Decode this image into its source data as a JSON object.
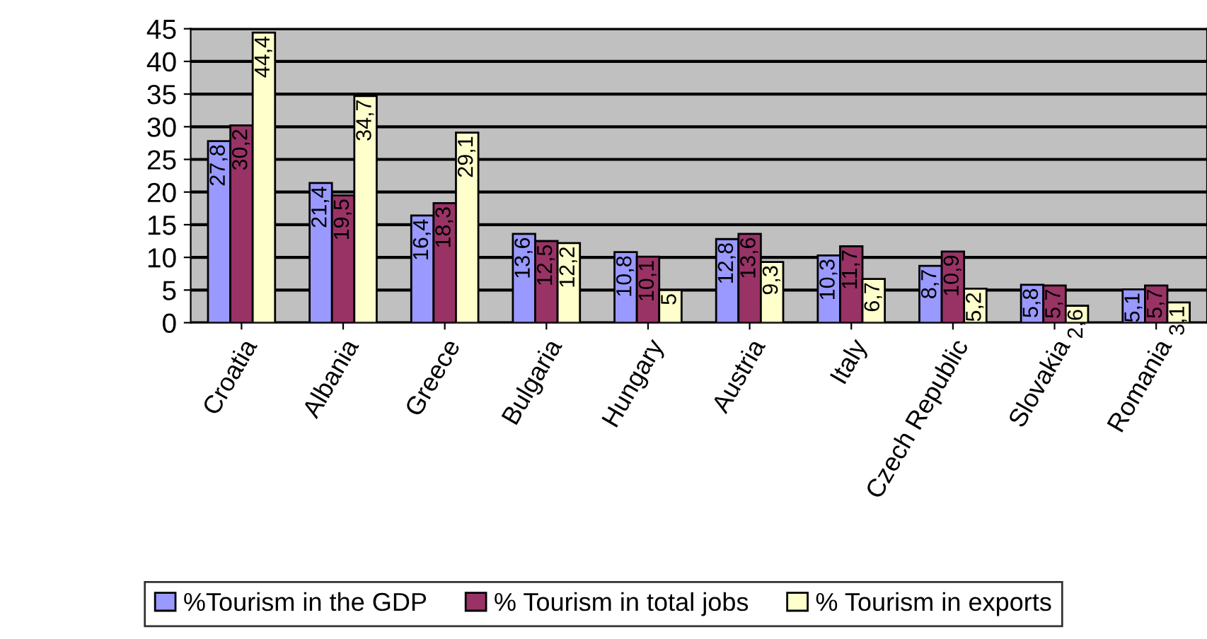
{
  "chart_data": {
    "type": "bar",
    "categories": [
      "Croatia",
      "Albania",
      "Greece",
      "Bulgaria",
      "Hungary",
      "Austria",
      "Italy",
      "Czech Republic",
      "Slovakia",
      "Romania"
    ],
    "series": [
      {
        "name": "%Tourism in the GDP",
        "color": "#9999ff",
        "values": [
          27.8,
          21.4,
          16.4,
          13.6,
          10.8,
          12.8,
          10.3,
          8.7,
          5.8,
          5.1
        ],
        "value_labels": [
          "27,8",
          "21,4",
          "16,4",
          "13,6",
          "10,8",
          "12,8",
          "10,3",
          "8,7",
          "5,8",
          "5,1"
        ]
      },
      {
        "name": "% Tourism in total jobs",
        "color": "#993366",
        "values": [
          30.2,
          19.5,
          18.3,
          12.5,
          10.1,
          13.6,
          11.7,
          10.9,
          5.7,
          5.7
        ],
        "value_labels": [
          "30,2",
          "19,5",
          "18,3",
          "12,5",
          "10,1",
          "13,6",
          "11,7",
          "10,9",
          "5,7",
          "5,7"
        ]
      },
      {
        "name": "% Tourism in exports",
        "color": "#ffffcc",
        "values": [
          44.4,
          34.7,
          29.1,
          12.2,
          5,
          9.3,
          6.7,
          5.2,
          2.6,
          3.1
        ],
        "value_labels": [
          "44,4",
          "34,7",
          "29,1",
          "12,2",
          "5",
          "9,3",
          "6,7",
          "5,2",
          "2,6",
          "3,1"
        ]
      }
    ],
    "ylim": [
      0,
      45
    ],
    "yticks": [
      0,
      5,
      10,
      15,
      20,
      25,
      30,
      35,
      40,
      45
    ],
    "grid": "y",
    "legend": "bottom"
  }
}
